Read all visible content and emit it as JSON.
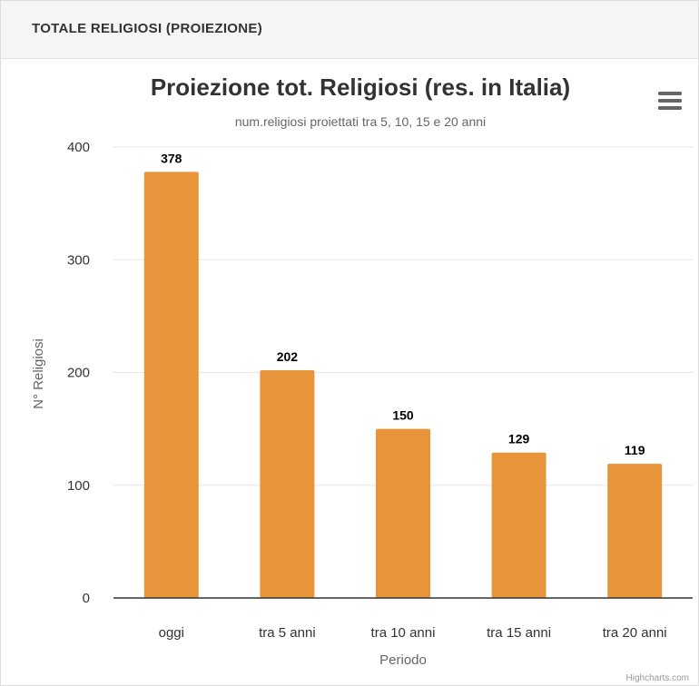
{
  "panel": {
    "title": "TOTALE RELIGIOSI (PROIEZIONE)"
  },
  "chart_data": {
    "type": "bar",
    "title": "Proiezione tot. Religiosi (res. in Italia)",
    "subtitle": "num.religiosi proiettati tra 5, 10, 15 e 20 anni",
    "xlabel": "Periodo",
    "ylabel": "N° Religiosi",
    "categories": [
      "oggi",
      "tra 5 anni",
      "tra 10 anni",
      "tra 15 anni",
      "tra 20 anni"
    ],
    "values": [
      378,
      202,
      150,
      129,
      119
    ],
    "data_labels": [
      "378",
      "202",
      "150",
      "129",
      "119"
    ],
    "ylim": [
      0,
      400
    ],
    "yticks": [
      "0",
      "100",
      "200",
      "300",
      "400"
    ],
    "grid": true,
    "legend": "none",
    "bar_color": "#e8943a",
    "credits": "Highcharts.com",
    "menu_icon": "hamburger-menu-icon"
  }
}
